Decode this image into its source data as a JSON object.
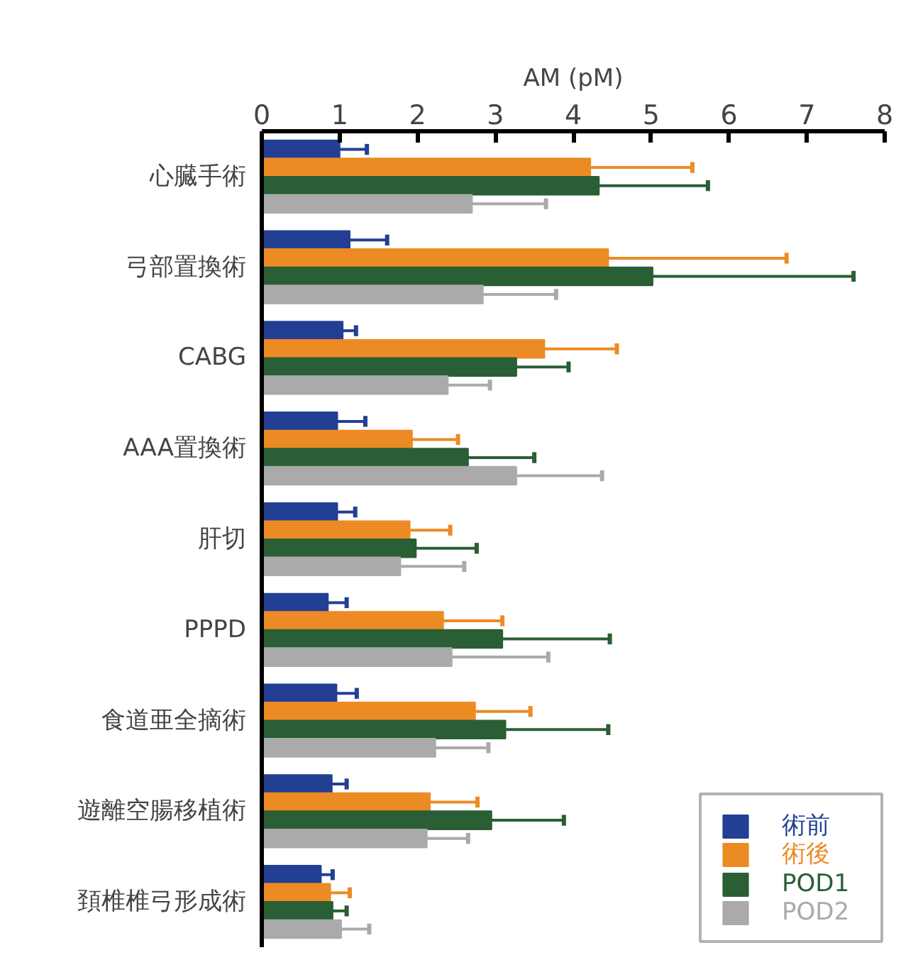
{
  "chart_data": {
    "type": "bar",
    "orientation": "horizontal",
    "xlabel": "AM (pM)",
    "categories": [
      "心臓手術",
      "弓部置換術",
      "CABG",
      "AAA置換術",
      "肝切",
      "PPPD",
      "食道亜全摘術",
      "遊離空腸移植術",
      "頚椎椎弓形成術"
    ],
    "xlim": [
      0,
      8
    ],
    "xticks": [
      0,
      1,
      2,
      3,
      4,
      5,
      6,
      7,
      8
    ],
    "grid": false,
    "legend": "bottom right",
    "series": [
      {
        "name": "術前",
        "color": "#233f94",
        "values": [
          1.0,
          1.13,
          1.04,
          0.97,
          0.97,
          0.85,
          0.96,
          0.9,
          0.76
        ],
        "errors": [
          [
            1.0,
            1.35
          ],
          [
            1.13,
            1.61
          ],
          [
            1.04,
            1.21
          ],
          [
            0.97,
            1.33
          ],
          [
            0.97,
            1.2
          ],
          [
            0.85,
            1.09
          ],
          [
            0.96,
            1.22
          ],
          [
            0.9,
            1.09
          ],
          [
            0.76,
            0.91
          ]
        ]
      },
      {
        "name": "術後",
        "color": "#ec8b24",
        "values": [
          4.22,
          4.45,
          3.63,
          1.93,
          1.9,
          2.33,
          2.74,
          2.16,
          0.88
        ],
        "errors": [
          [
            4.22,
            5.53
          ],
          [
            4.45,
            6.74
          ],
          [
            3.63,
            4.56
          ],
          [
            1.93,
            2.52
          ],
          [
            1.9,
            2.42
          ],
          [
            2.33,
            3.09
          ],
          [
            2.74,
            3.45
          ],
          [
            2.16,
            2.77
          ],
          [
            0.88,
            1.13
          ]
        ]
      },
      {
        "name": "POD1",
        "color": "#2a5e34",
        "values": [
          4.33,
          5.02,
          3.27,
          2.65,
          1.98,
          3.09,
          3.13,
          2.95,
          0.91
        ],
        "errors": [
          [
            4.33,
            5.73
          ],
          [
            5.02,
            7.6
          ],
          [
            3.27,
            3.94
          ],
          [
            2.65,
            3.5
          ],
          [
            1.98,
            2.76
          ],
          [
            3.09,
            4.47
          ],
          [
            3.13,
            4.45
          ],
          [
            2.95,
            3.88
          ],
          [
            0.91,
            1.09
          ]
        ]
      },
      {
        "name": "POD2",
        "color": "#aaaaaa",
        "values": [
          2.7,
          2.84,
          2.39,
          3.27,
          1.78,
          2.44,
          2.23,
          2.12,
          1.02
        ],
        "errors": [
          [
            2.7,
            3.65
          ],
          [
            2.84,
            3.78
          ],
          [
            2.39,
            2.93
          ],
          [
            3.27,
            4.37
          ],
          [
            1.78,
            2.6
          ],
          [
            2.44,
            3.68
          ],
          [
            2.23,
            2.91
          ],
          [
            2.12,
            2.65
          ],
          [
            1.02,
            1.38
          ]
        ]
      }
    ]
  }
}
